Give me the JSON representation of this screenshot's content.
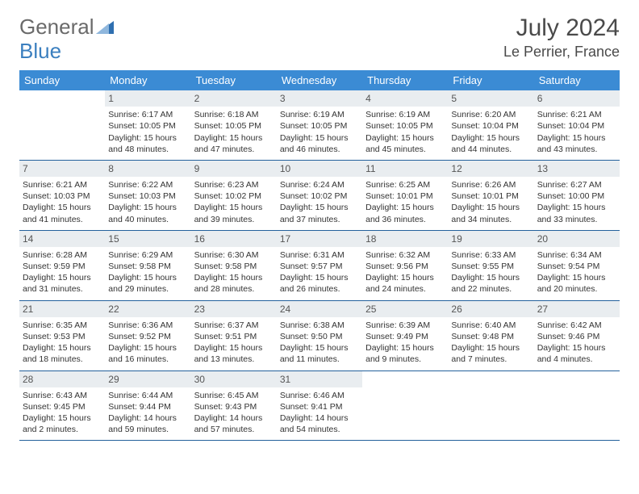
{
  "logo": {
    "part1": "General",
    "part2": "Blue"
  },
  "header": {
    "month_title": "July 2024",
    "location": "Le Perrier, France"
  },
  "style": {
    "header_blue": "#3b8bd4",
    "rule_color": "#24619c",
    "daynum_bg": "#e9edf0",
    "text_color": "#333333",
    "page_bg": "#ffffff",
    "title_color": "#4a4a4a",
    "logo_gray": "#6a6a6a",
    "logo_blue": "#3b7fbf",
    "font_family": "Arial",
    "th_fontsize": 13,
    "cell_fontsize": 10.5,
    "title_fontsize": 30,
    "location_fontsize": 18
  },
  "day_names": [
    "Sunday",
    "Monday",
    "Tuesday",
    "Wednesday",
    "Thursday",
    "Friday",
    "Saturday"
  ],
  "weeks": [
    [
      null,
      {
        "n": "1",
        "sr": "Sunrise: 6:17 AM",
        "ss": "Sunset: 10:05 PM",
        "dl": "Daylight: 15 hours and 48 minutes."
      },
      {
        "n": "2",
        "sr": "Sunrise: 6:18 AM",
        "ss": "Sunset: 10:05 PM",
        "dl": "Daylight: 15 hours and 47 minutes."
      },
      {
        "n": "3",
        "sr": "Sunrise: 6:19 AM",
        "ss": "Sunset: 10:05 PM",
        "dl": "Daylight: 15 hours and 46 minutes."
      },
      {
        "n": "4",
        "sr": "Sunrise: 6:19 AM",
        "ss": "Sunset: 10:05 PM",
        "dl": "Daylight: 15 hours and 45 minutes."
      },
      {
        "n": "5",
        "sr": "Sunrise: 6:20 AM",
        "ss": "Sunset: 10:04 PM",
        "dl": "Daylight: 15 hours and 44 minutes."
      },
      {
        "n": "6",
        "sr": "Sunrise: 6:21 AM",
        "ss": "Sunset: 10:04 PM",
        "dl": "Daylight: 15 hours and 43 minutes."
      }
    ],
    [
      {
        "n": "7",
        "sr": "Sunrise: 6:21 AM",
        "ss": "Sunset: 10:03 PM",
        "dl": "Daylight: 15 hours and 41 minutes."
      },
      {
        "n": "8",
        "sr": "Sunrise: 6:22 AM",
        "ss": "Sunset: 10:03 PM",
        "dl": "Daylight: 15 hours and 40 minutes."
      },
      {
        "n": "9",
        "sr": "Sunrise: 6:23 AM",
        "ss": "Sunset: 10:02 PM",
        "dl": "Daylight: 15 hours and 39 minutes."
      },
      {
        "n": "10",
        "sr": "Sunrise: 6:24 AM",
        "ss": "Sunset: 10:02 PM",
        "dl": "Daylight: 15 hours and 37 minutes."
      },
      {
        "n": "11",
        "sr": "Sunrise: 6:25 AM",
        "ss": "Sunset: 10:01 PM",
        "dl": "Daylight: 15 hours and 36 minutes."
      },
      {
        "n": "12",
        "sr": "Sunrise: 6:26 AM",
        "ss": "Sunset: 10:01 PM",
        "dl": "Daylight: 15 hours and 34 minutes."
      },
      {
        "n": "13",
        "sr": "Sunrise: 6:27 AM",
        "ss": "Sunset: 10:00 PM",
        "dl": "Daylight: 15 hours and 33 minutes."
      }
    ],
    [
      {
        "n": "14",
        "sr": "Sunrise: 6:28 AM",
        "ss": "Sunset: 9:59 PM",
        "dl": "Daylight: 15 hours and 31 minutes."
      },
      {
        "n": "15",
        "sr": "Sunrise: 6:29 AM",
        "ss": "Sunset: 9:58 PM",
        "dl": "Daylight: 15 hours and 29 minutes."
      },
      {
        "n": "16",
        "sr": "Sunrise: 6:30 AM",
        "ss": "Sunset: 9:58 PM",
        "dl": "Daylight: 15 hours and 28 minutes."
      },
      {
        "n": "17",
        "sr": "Sunrise: 6:31 AM",
        "ss": "Sunset: 9:57 PM",
        "dl": "Daylight: 15 hours and 26 minutes."
      },
      {
        "n": "18",
        "sr": "Sunrise: 6:32 AM",
        "ss": "Sunset: 9:56 PM",
        "dl": "Daylight: 15 hours and 24 minutes."
      },
      {
        "n": "19",
        "sr": "Sunrise: 6:33 AM",
        "ss": "Sunset: 9:55 PM",
        "dl": "Daylight: 15 hours and 22 minutes."
      },
      {
        "n": "20",
        "sr": "Sunrise: 6:34 AM",
        "ss": "Sunset: 9:54 PM",
        "dl": "Daylight: 15 hours and 20 minutes."
      }
    ],
    [
      {
        "n": "21",
        "sr": "Sunrise: 6:35 AM",
        "ss": "Sunset: 9:53 PM",
        "dl": "Daylight: 15 hours and 18 minutes."
      },
      {
        "n": "22",
        "sr": "Sunrise: 6:36 AM",
        "ss": "Sunset: 9:52 PM",
        "dl": "Daylight: 15 hours and 16 minutes."
      },
      {
        "n": "23",
        "sr": "Sunrise: 6:37 AM",
        "ss": "Sunset: 9:51 PM",
        "dl": "Daylight: 15 hours and 13 minutes."
      },
      {
        "n": "24",
        "sr": "Sunrise: 6:38 AM",
        "ss": "Sunset: 9:50 PM",
        "dl": "Daylight: 15 hours and 11 minutes."
      },
      {
        "n": "25",
        "sr": "Sunrise: 6:39 AM",
        "ss": "Sunset: 9:49 PM",
        "dl": "Daylight: 15 hours and 9 minutes."
      },
      {
        "n": "26",
        "sr": "Sunrise: 6:40 AM",
        "ss": "Sunset: 9:48 PM",
        "dl": "Daylight: 15 hours and 7 minutes."
      },
      {
        "n": "27",
        "sr": "Sunrise: 6:42 AM",
        "ss": "Sunset: 9:46 PM",
        "dl": "Daylight: 15 hours and 4 minutes."
      }
    ],
    [
      {
        "n": "28",
        "sr": "Sunrise: 6:43 AM",
        "ss": "Sunset: 9:45 PM",
        "dl": "Daylight: 15 hours and 2 minutes."
      },
      {
        "n": "29",
        "sr": "Sunrise: 6:44 AM",
        "ss": "Sunset: 9:44 PM",
        "dl": "Daylight: 14 hours and 59 minutes."
      },
      {
        "n": "30",
        "sr": "Sunrise: 6:45 AM",
        "ss": "Sunset: 9:43 PM",
        "dl": "Daylight: 14 hours and 57 minutes."
      },
      {
        "n": "31",
        "sr": "Sunrise: 6:46 AM",
        "ss": "Sunset: 9:41 PM",
        "dl": "Daylight: 14 hours and 54 minutes."
      },
      null,
      null,
      null
    ]
  ]
}
